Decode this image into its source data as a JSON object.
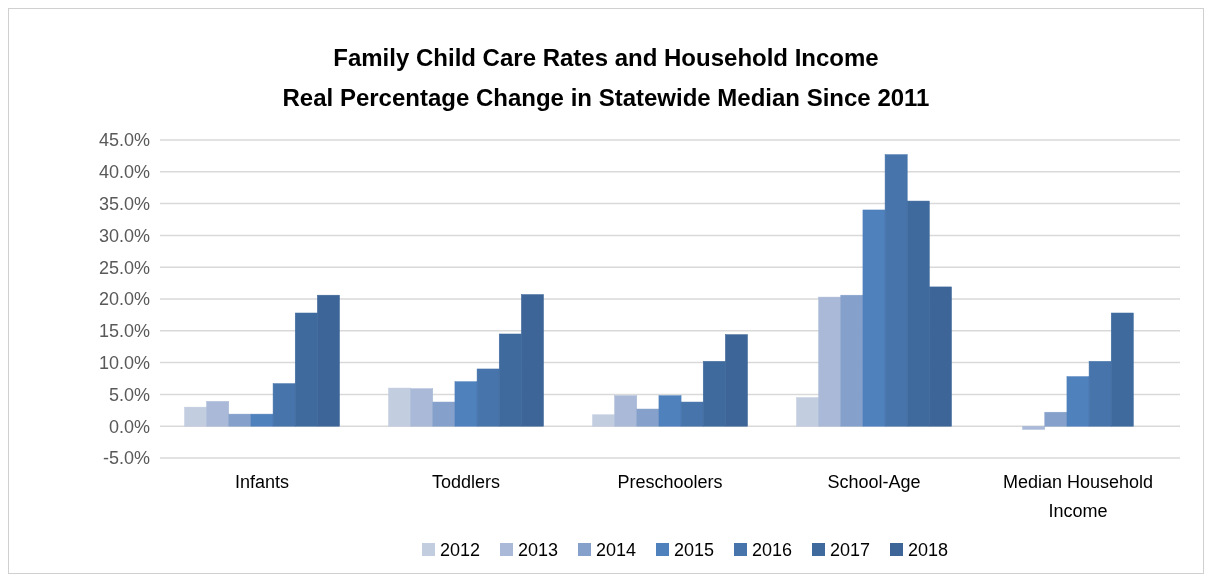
{
  "chart_data": {
    "type": "bar",
    "title": "Family Child Care Rates and Household Income",
    "subtitle": "Real Percentage Change in Statewide Median Since 2011",
    "categories": [
      "Infants",
      "Toddlers",
      "Preschoolers",
      "School-Age",
      "Median Household Income"
    ],
    "series": [
      {
        "name": "2012",
        "color": "#c3cde0",
        "values": [
          3.0,
          6.0,
          1.8,
          4.5,
          null
        ]
      },
      {
        "name": "2013",
        "color": "#aab9d7",
        "values": [
          3.9,
          5.9,
          4.8,
          20.3,
          -0.5
        ]
      },
      {
        "name": "2014",
        "color": "#85a0cb",
        "values": [
          1.9,
          3.8,
          2.7,
          20.6,
          2.2
        ]
      },
      {
        "name": "2015",
        "color": "#4f81bd",
        "values": [
          1.9,
          7.0,
          4.8,
          34.0,
          7.8
        ]
      },
      {
        "name": "2016",
        "color": "#4774ab",
        "values": [
          6.7,
          9.0,
          3.8,
          42.7,
          10.2
        ]
      },
      {
        "name": "2017",
        "color": "#3f6a9e",
        "values": [
          17.8,
          14.5,
          10.2,
          35.4,
          17.8
        ]
      },
      {
        "name": "2018",
        "color": "#3d6598",
        "values": [
          20.6,
          20.7,
          14.4,
          21.9,
          null
        ]
      }
    ],
    "ylim": [
      -5,
      45
    ],
    "yticks": [
      {
        "value": -5,
        "label": "-5.0%"
      },
      {
        "value": 0,
        "label": "0.0%"
      },
      {
        "value": 5,
        "label": "5.0%"
      },
      {
        "value": 10,
        "label": "10.0%"
      },
      {
        "value": 15,
        "label": "15.0%"
      },
      {
        "value": 20,
        "label": "20.0%"
      },
      {
        "value": 25,
        "label": "25.0%"
      },
      {
        "value": 30,
        "label": "30.0%"
      },
      {
        "value": 35,
        "label": "35.0%"
      },
      {
        "value": 40,
        "label": "40.0%"
      },
      {
        "value": 45,
        "label": "45.0%"
      }
    ],
    "grid": "y",
    "legend": "bottom"
  }
}
